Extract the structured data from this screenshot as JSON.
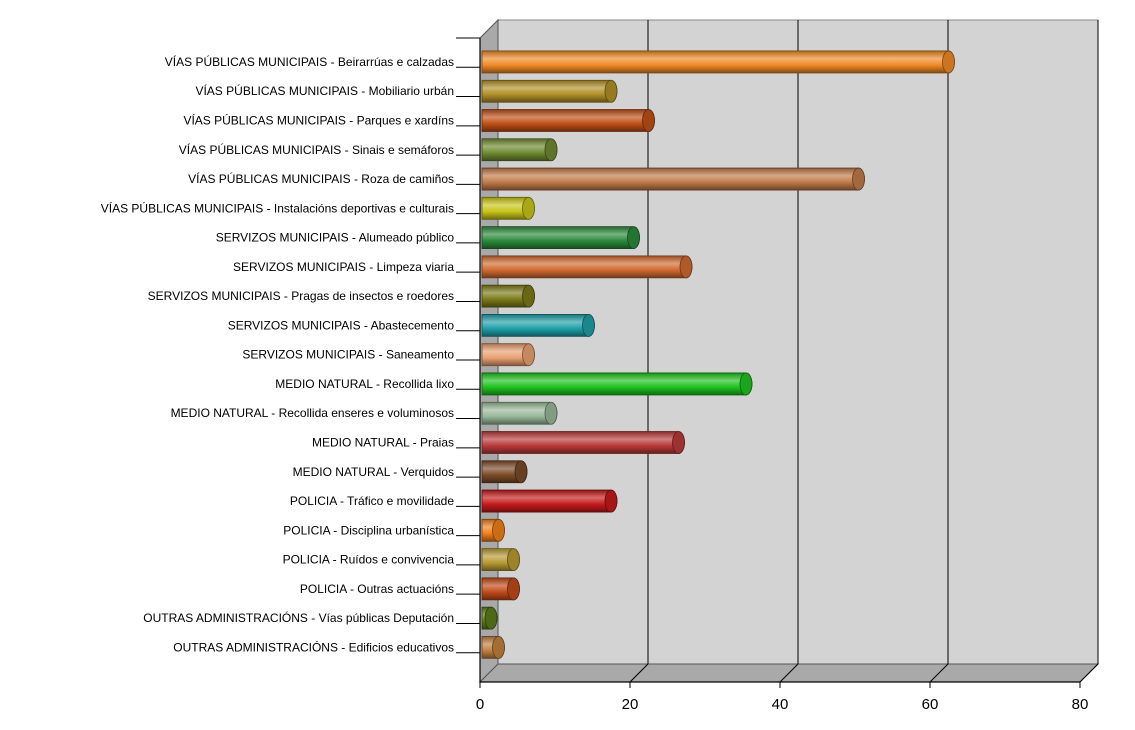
{
  "chart_data": {
    "type": "bar",
    "orientation": "horizontal",
    "style": "3d-cylinder",
    "title": "",
    "xlabel": "",
    "ylabel": "",
    "xlim": [
      0,
      80
    ],
    "x_ticks": [
      0,
      20,
      40,
      60,
      80
    ],
    "grid": "vertical",
    "legend": "none",
    "categories": [
      "VÍAS PÚBLICAS MUNICIPAIS - Beirarrúas e calzadas",
      "VÍAS PÚBLICAS MUNICIPAIS - Mobiliario urbán",
      "VÍAS PÚBLICAS MUNICIPAIS - Parques e xardíns",
      "VÍAS PÚBLICAS MUNICIPAIS - Sinais e semáforos",
      "VÍAS PÚBLICAS MUNICIPAIS - Roza de camiños",
      "VÍAS PÚBLICAS MUNICIPAIS - Instalacións deportivas e culturais",
      "SERVIZOS MUNICIPAIS - Alumeado público",
      "SERVIZOS MUNICIPAIS - Limpeza viaria",
      "SERVIZOS MUNICIPAIS - Pragas de insectos e roedores",
      "SERVIZOS MUNICIPAIS - Abastecemento",
      "SERVIZOS MUNICIPAIS - Saneamento",
      "MEDIO NATURAL - Recollida lixo",
      "MEDIO NATURAL - Recollida enseres e voluminosos",
      "MEDIO NATURAL - Praias",
      "MEDIO NATURAL - Verquidos",
      "POLICIA - Tráfico e movilidade",
      "POLICIA - Disciplina urbanística",
      "POLICIA - Ruídos e convivencia",
      "POLICIA - Outras actuacións",
      "OUTRAS ADMINISTRACIÓNS - Vías públicas Deputación",
      "OUTRAS ADMINISTRACIÓNS - Edificios educativos"
    ],
    "values": [
      63,
      18,
      23,
      10,
      51,
      7,
      21,
      28,
      7,
      15,
      7,
      36,
      10,
      27,
      6,
      18,
      3,
      5,
      5,
      2,
      3
    ],
    "colors": [
      "#f08a24",
      "#b08f28",
      "#bf4f16",
      "#6e8a30",
      "#c07a48",
      "#c8c418",
      "#2a8a3a",
      "#cf6a30",
      "#7a7a18",
      "#1f9fa8",
      "#e8a070",
      "#1ec21e",
      "#98b898",
      "#b83a3a",
      "#7a4a26",
      "#c41a1a",
      "#f0801a",
      "#b89a32",
      "#c04a18",
      "#5a7a1a",
      "#c08040"
    ]
  }
}
